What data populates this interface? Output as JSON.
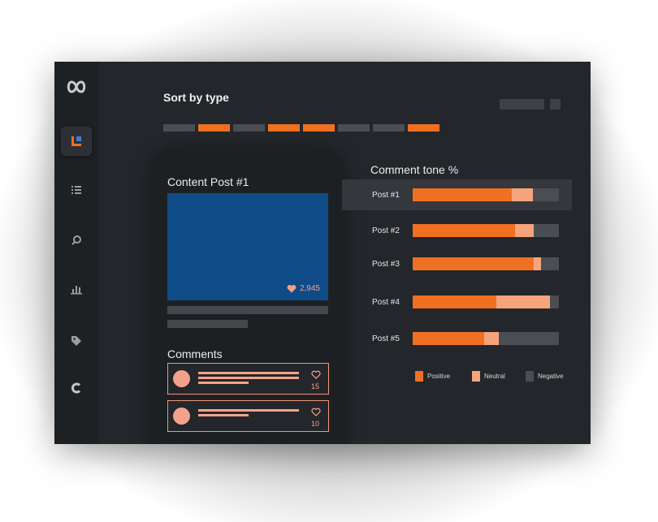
{
  "header": {
    "sort_title": "Sort by type"
  },
  "filters": [
    {
      "active": false
    },
    {
      "active": true
    },
    {
      "active": false
    },
    {
      "active": true
    },
    {
      "active": true
    },
    {
      "active": false
    },
    {
      "active": false
    },
    {
      "active": true
    }
  ],
  "sidebar": {
    "items": [
      {
        "icon": "dashboard-icon",
        "active": true
      },
      {
        "icon": "list-icon",
        "active": false
      },
      {
        "icon": "search-icon",
        "active": false
      },
      {
        "icon": "bar-chart-icon",
        "active": false
      },
      {
        "icon": "tag-icon",
        "active": false
      },
      {
        "icon": "refresh-icon",
        "active": false
      }
    ]
  },
  "post": {
    "title": "Content Post #1",
    "likes": "2,945"
  },
  "comments": {
    "title": "Comments",
    "items": [
      {
        "count": "15"
      },
      {
        "count": "10"
      }
    ]
  },
  "chart_data": {
    "type": "bar",
    "orientation": "horizontal",
    "stacked": true,
    "title": "Comment tone %",
    "categories": [
      "Post #1",
      "Post #2",
      "Post #3",
      "Post #4",
      "Post #5"
    ],
    "series": [
      {
        "name": "Positive",
        "values": [
          68,
          70,
          83,
          57,
          49
        ]
      },
      {
        "name": "Neutral",
        "values": [
          14,
          13,
          5,
          37,
          10
        ]
      },
      {
        "name": "Negative",
        "values": [
          18,
          17,
          12,
          6,
          41
        ]
      }
    ],
    "highlighted_category": "Post #1",
    "legend_position": "bottom-right",
    "xlim": [
      0,
      100
    ]
  },
  "colors": {
    "accent": "#f07021",
    "neutral": "#f5a47c",
    "negative": "#4a4e53",
    "image": "#0f4b86",
    "comment": "#f2a28b"
  }
}
